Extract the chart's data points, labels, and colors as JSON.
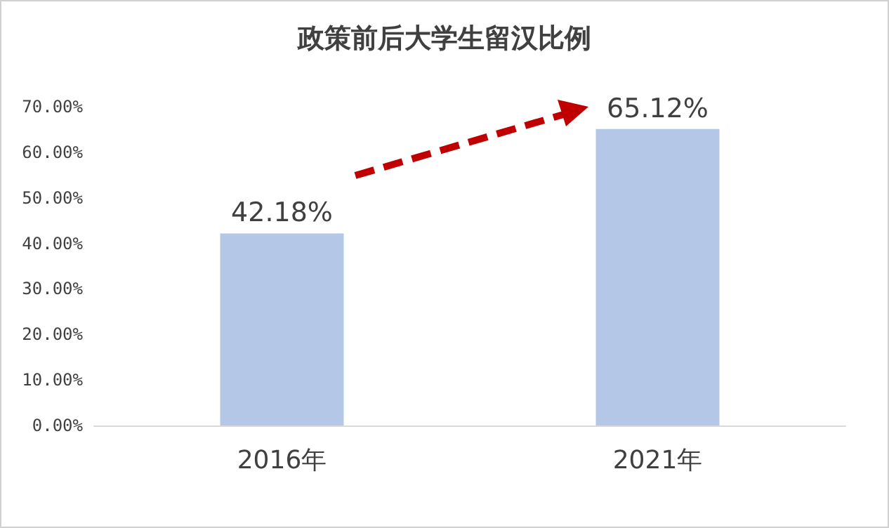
{
  "chart_data": {
    "type": "bar",
    "title": "政策前后大学生留汉比例",
    "categories": [
      "2016年",
      "2021年"
    ],
    "values": [
      42.18,
      65.12
    ],
    "color": "#b4c7e7",
    "value_labels": [
      "42.18%",
      "65.12%"
    ],
    "ylim": [
      0,
      70
    ],
    "yticks": [
      {
        "value": 0,
        "label": "0.00%"
      },
      {
        "value": 10,
        "label": "10.00%"
      },
      {
        "value": 20,
        "label": "20.00%"
      },
      {
        "value": 30,
        "label": "30.00%"
      },
      {
        "value": 40,
        "label": "40.00%"
      },
      {
        "value": 50,
        "label": "50.00%"
      },
      {
        "value": 60,
        "label": "60.00%"
      },
      {
        "value": 70,
        "label": "70.00%"
      }
    ],
    "grid": false
  }
}
